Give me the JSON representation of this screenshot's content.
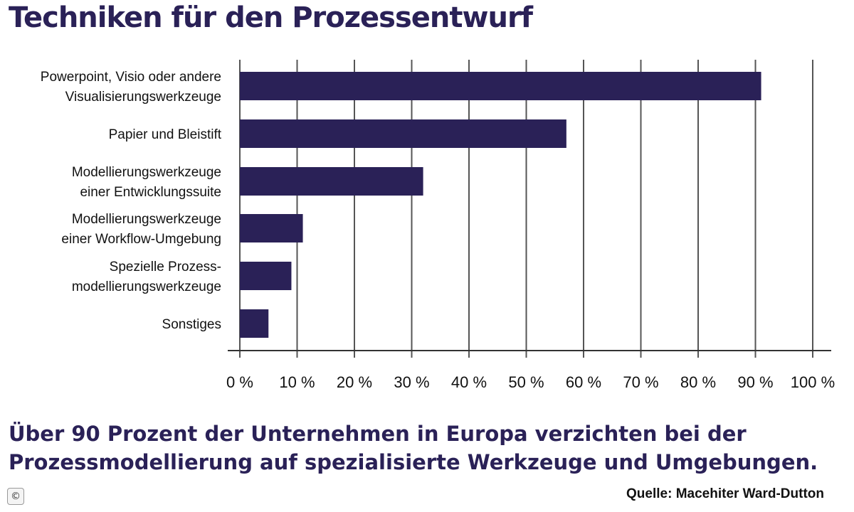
{
  "chart_data": {
    "type": "bar",
    "orientation": "horizontal",
    "title": "Techniken für den Prozessentwurf",
    "categories": [
      [
        "Powerpoint, Visio oder andere",
        "Visualisierungswerkzeuge"
      ],
      [
        "Papier und Bleistift"
      ],
      [
        "Modellierungswerkzeuge",
        "einer Entwicklungssuite"
      ],
      [
        "Modellierungswerkzeuge",
        "einer Workflow-Umgebung"
      ],
      [
        "Spezielle Prozess-",
        "modellierungswerkzeuge"
      ],
      [
        "Sonstiges"
      ]
    ],
    "values": [
      91,
      57,
      32,
      11,
      9,
      5
    ],
    "xlim": [
      0,
      100
    ],
    "xticks": [
      "0 %",
      "10 %",
      "20 %",
      "30 %",
      "40 %",
      "50 %",
      "60 %",
      "70 %",
      "80 %",
      "90 %",
      "100 %"
    ],
    "xlabel": "",
    "ylabel": "",
    "grid": "vertical",
    "bar_color": "#2a2157"
  },
  "caption": {
    "line1": "Über 90 Prozent der Unternehmen in Europa verzichten bei der",
    "line2": "Prozessmodellierung auf spezialisierte Werkzeuge und Umgebungen."
  },
  "source": "Quelle: Macehiter Ward-Dutton",
  "copyright_symbol": "©",
  "colors": {
    "accent": "#2a2157",
    "gridline": "#555555"
  }
}
